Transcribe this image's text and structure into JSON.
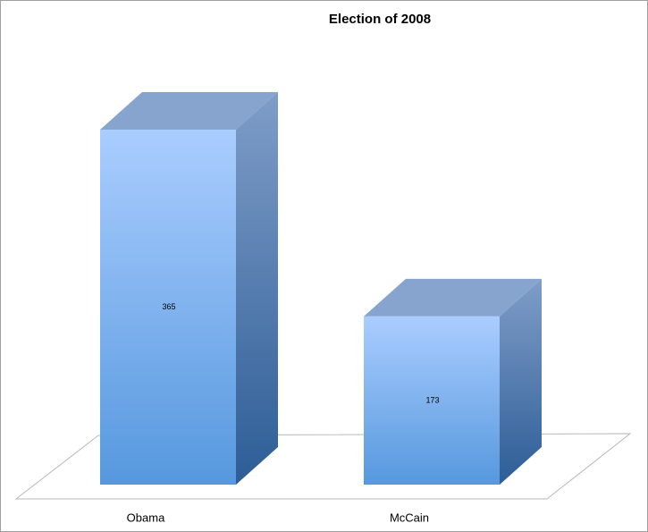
{
  "chart_data": {
    "type": "bar3d",
    "title": "Election of 2008",
    "categories": [
      "Obama",
      "McCain"
    ],
    "values": [
      365,
      173
    ],
    "color": "#6aa3e8"
  }
}
